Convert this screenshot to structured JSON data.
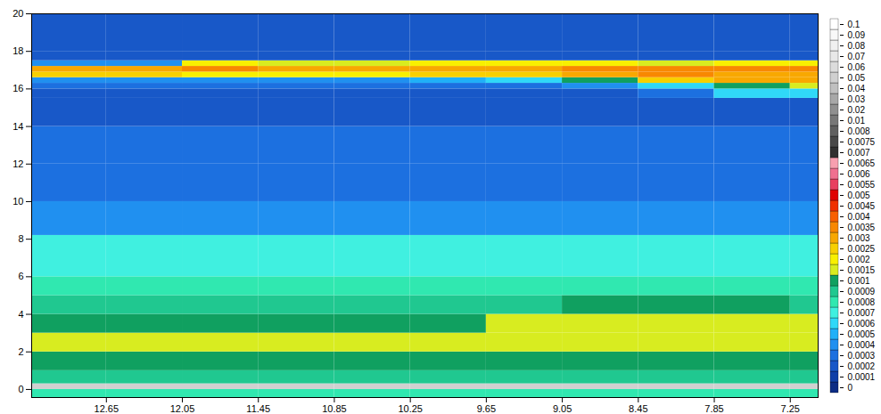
{
  "chart_data": {
    "type": "heatmap",
    "xlim": [
      13.24,
      7.03
    ],
    "ylim": [
      -0.43,
      20
    ],
    "xticks": [
      12.65,
      12.05,
      11.45,
      10.85,
      10.25,
      9.65,
      9.05,
      8.45,
      7.85,
      7.25
    ],
    "yticks": [
      0,
      2,
      4,
      6,
      8,
      10,
      12,
      14,
      16,
      18,
      20
    ],
    "x_edges": [
      13.24,
      12.65,
      12.05,
      11.45,
      10.85,
      10.25,
      9.65,
      9.05,
      8.45,
      7.85,
      7.25,
      7.03
    ],
    "y_edges": [
      -0.43,
      0,
      0.3,
      1,
      2,
      3,
      4,
      5,
      6,
      8.2,
      10,
      12,
      14,
      15.5,
      16,
      16.3,
      16.6,
      16.9,
      17.2,
      17.5,
      18,
      20
    ],
    "cells": [
      [
        0.0008,
        0.0008,
        0.0008,
        0.0008,
        0.0008,
        0.0008,
        0.0008,
        0.0008,
        0.0008,
        0.0008,
        0.0008
      ],
      [
        0.05,
        0.05,
        0.05,
        0.05,
        0.05,
        0.05,
        0.05,
        0.05,
        0.05,
        0.05,
        0.05
      ],
      [
        0.0009,
        0.0009,
        0.0009,
        0.0009,
        0.0009,
        0.0009,
        0.0009,
        0.0009,
        0.0009,
        0.0009,
        0.0009
      ],
      [
        0.001,
        0.001,
        0.001,
        0.001,
        0.001,
        0.001,
        0.001,
        0.001,
        0.001,
        0.001,
        0.001
      ],
      [
        0.0015,
        0.0015,
        0.0015,
        0.0015,
        0.0015,
        0.0015,
        0.0015,
        0.0015,
        0.0015,
        0.0015,
        0.0015
      ],
      [
        0.001,
        0.001,
        0.001,
        0.001,
        0.001,
        0.001,
        0.0015,
        0.0015,
        0.0015,
        0.0015,
        0.0015
      ],
      [
        0.0009,
        0.0009,
        0.0009,
        0.0009,
        0.0009,
        0.0009,
        0.0009,
        0.001,
        0.001,
        0.001,
        0.0009
      ],
      [
        0.0008,
        0.0008,
        0.0008,
        0.0008,
        0.0008,
        0.0008,
        0.0008,
        0.0008,
        0.0008,
        0.0008,
        0.0008
      ],
      [
        0.0007,
        0.0007,
        0.0007,
        0.0007,
        0.0007,
        0.0007,
        0.0007,
        0.0007,
        0.0007,
        0.0007,
        0.0007
      ],
      [
        0.0004,
        0.0004,
        0.0004,
        0.0004,
        0.0004,
        0.0004,
        0.0004,
        0.0004,
        0.0004,
        0.0004,
        0.0004
      ],
      [
        0.0003,
        0.0003,
        0.0003,
        0.0003,
        0.0003,
        0.0003,
        0.0003,
        0.0003,
        0.0003,
        0.0003,
        0.0003
      ],
      [
        0.0003,
        0.0003,
        0.0003,
        0.0003,
        0.0003,
        0.0003,
        0.0003,
        0.0003,
        0.0003,
        0.0003,
        0.0003
      ],
      [
        0.0002,
        0.0002,
        0.0002,
        0.0002,
        0.0002,
        0.0002,
        0.0002,
        0.0002,
        0.0002,
        0.0002,
        0.0002
      ],
      [
        0.0002,
        0.0002,
        0.0002,
        0.0002,
        0.0002,
        0.0002,
        0.0002,
        0.0002,
        0.0003,
        0.0006,
        0.0006
      ],
      [
        0.0003,
        0.0003,
        0.0003,
        0.0003,
        0.0003,
        0.0003,
        0.0003,
        0.0004,
        0.0006,
        0.001,
        0.0015
      ],
      [
        0.0004,
        0.0004,
        0.0004,
        0.0004,
        0.0004,
        0.0005,
        0.0006,
        0.001,
        0.0025,
        0.003,
        0.003
      ],
      [
        0.0025,
        0.0025,
        0.002,
        0.002,
        0.002,
        0.0025,
        0.0025,
        0.003,
        0.0035,
        0.003,
        0.003
      ],
      [
        0.003,
        0.003,
        0.0035,
        0.003,
        0.003,
        0.003,
        0.003,
        0.0035,
        0.0035,
        0.0035,
        0.0035
      ],
      [
        0.0004,
        0.0004,
        0.002,
        0.0015,
        0.0015,
        0.002,
        0.002,
        0.002,
        0.0015,
        0.002,
        0.002
      ],
      [
        0.0002,
        0.0002,
        0.0002,
        0.0002,
        0.0002,
        0.0002,
        0.0002,
        0.0002,
        0.0002,
        0.0002,
        0.0002
      ],
      [
        0.0002,
        0.0002,
        0.0002,
        0.0002,
        0.0002,
        0.0002,
        0.0002,
        0.0002,
        0.0002,
        0.0002,
        0.0002
      ]
    ],
    "colorbar": {
      "ticks": [
        0,
        0.0001,
        0.0002,
        0.0003,
        0.0004,
        0.0005,
        0.0006,
        0.0007,
        0.0008,
        0.0009,
        0.001,
        0.0015,
        0.002,
        0.0025,
        0.003,
        0.0035,
        0.004,
        0.0045,
        0.005,
        0.0055,
        0.006,
        0.0065,
        0.007,
        0.0075,
        0.008,
        0.01,
        0.02,
        0.03,
        0.04,
        0.05,
        0.06,
        0.07,
        0.08,
        0.09,
        0.1
      ],
      "colors": [
        "#0c2c84",
        "#1040a8",
        "#1858c8",
        "#1c70e0",
        "#2090f0",
        "#20b0f8",
        "#30d8f8",
        "#40f0e0",
        "#30e8b0",
        "#20c890",
        "#10a060",
        "#d8ec20",
        "#f8f000",
        "#f8d000",
        "#f8a800",
        "#f88800",
        "#f86000",
        "#f03000",
        "#e00000",
        "#e84060",
        "#f07090",
        "#f8a0b0",
        "#303030",
        "#484848",
        "#606060",
        "#787878",
        "#909090",
        "#a8a8a8",
        "#c0c0c0",
        "#d0d0d0",
        "#dcdcdc",
        "#e8e8e8",
        "#f0f0f0",
        "#f8f8f8",
        "#ffffff"
      ]
    }
  }
}
